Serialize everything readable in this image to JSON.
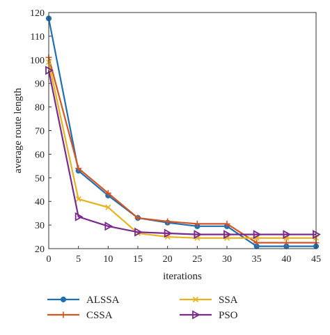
{
  "chart_data": {
    "type": "line",
    "title": "",
    "xlabel": "iterations",
    "ylabel": "average route length",
    "xlim": [
      0,
      45
    ],
    "ylim": [
      20,
      120
    ],
    "xticks": [
      0,
      5,
      10,
      15,
      20,
      25,
      30,
      35,
      40,
      45
    ],
    "yticks": [
      20,
      30,
      40,
      50,
      60,
      70,
      80,
      90,
      100,
      110,
      120
    ],
    "grid": false,
    "legend_position": "bottom",
    "x": [
      0,
      5,
      10,
      15,
      20,
      25,
      30,
      35,
      40,
      45
    ],
    "series": [
      {
        "name": "ALSSA",
        "color": "#1f6fb4",
        "marker": "circle",
        "values": [
          117.5,
          53,
          42.5,
          33,
          31,
          29.5,
          29.5,
          21,
          21,
          21
        ]
      },
      {
        "name": "CSSA",
        "color": "#d45521",
        "marker": "plus",
        "values": [
          101,
          54,
          43.5,
          33,
          31.5,
          30.5,
          30.5,
          22.5,
          22.5,
          22.5
        ]
      },
      {
        "name": "SSA",
        "color": "#e8b21c",
        "marker": "x",
        "values": [
          99,
          41,
          37.5,
          26.5,
          25,
          24.5,
          24.5,
          24.5,
          24.5,
          24.5
        ]
      },
      {
        "name": "PSO",
        "color": "#7a2a8c",
        "marker": "triangle-right",
        "values": [
          95.5,
          33.5,
          29.5,
          27,
          26.5,
          26,
          26,
          26,
          26,
          26
        ]
      }
    ]
  }
}
